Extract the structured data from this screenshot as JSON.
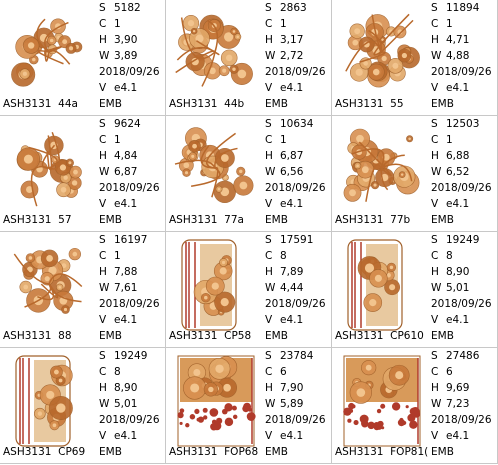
{
  "labels": {
    "stitches": "S",
    "colors": "C",
    "height": "H",
    "width": "W",
    "version": "V"
  },
  "cells": [
    {
      "name": "ASH3131  44a",
      "stitches": "5182",
      "colors": "1",
      "height": "3,90",
      "width": "3,89",
      "date": "2018/09/26",
      "version": "e4.1",
      "format": "EMB"
    },
    {
      "name": "ASH3131  44b",
      "stitches": "2863",
      "colors": "1",
      "height": "3,17",
      "width": "2,72",
      "date": "2018/09/26",
      "version": "e4.1",
      "format": "EMB"
    },
    {
      "name": "ASH3131  55",
      "stitches": "11894",
      "colors": "1",
      "height": "4,71",
      "width": "4,88",
      "date": "2018/09/26",
      "version": "e4.1",
      "format": "EMB"
    },
    {
      "name": "ASH3131  57",
      "stitches": "9624",
      "colors": "1",
      "height": "4,84",
      "width": "6,87",
      "date": "2018/09/26",
      "version": "e4.1",
      "format": "EMB"
    },
    {
      "name": "ASH3131  77a",
      "stitches": "10634",
      "colors": "1",
      "height": "6,87",
      "width": "6,56",
      "date": "2018/09/26",
      "version": "e4.1",
      "format": "EMB"
    },
    {
      "name": "ASH3131  77b",
      "stitches": "12503",
      "colors": "1",
      "height": "6,88",
      "width": "6,52",
      "date": "2018/09/26",
      "version": "e4.1",
      "format": "EMB"
    },
    {
      "name": "ASH3131  88",
      "stitches": "16197",
      "colors": "1",
      "height": "7,88",
      "width": "7,61",
      "date": "2018/09/26",
      "version": "e4.1",
      "format": "EMB"
    },
    {
      "name": "ASH3131  CP58",
      "stitches": "17591",
      "colors": "8",
      "height": "7,89",
      "width": "4,44",
      "date": "2018/09/26",
      "version": "e4.1",
      "format": "EMB"
    },
    {
      "name": "ASH3131  CP610",
      "stitches": "19249",
      "colors": "8",
      "height": "8,90",
      "width": "5,01",
      "date": "2018/09/26",
      "version": "e4.1",
      "format": "EMB"
    },
    {
      "name": "ASH3131  CP69",
      "stitches": "19249",
      "colors": "8",
      "height": "8,90",
      "width": "5,01",
      "date": "2018/09/26",
      "version": "e4.1",
      "format": "EMB"
    },
    {
      "name": "ASH3131  FOP68",
      "stitches": "23784",
      "colors": "6",
      "height": "7,90",
      "width": "5,89",
      "date": "2018/09/26",
      "version": "e4.1",
      "format": "EMB"
    },
    {
      "name": "ASH3131  FOP81(",
      "stitches": "27486",
      "colors": "6",
      "height": "9,69",
      "width": "7,23",
      "date": "2018/09/26",
      "version": "e4.1",
      "format": "EMB"
    }
  ]
}
